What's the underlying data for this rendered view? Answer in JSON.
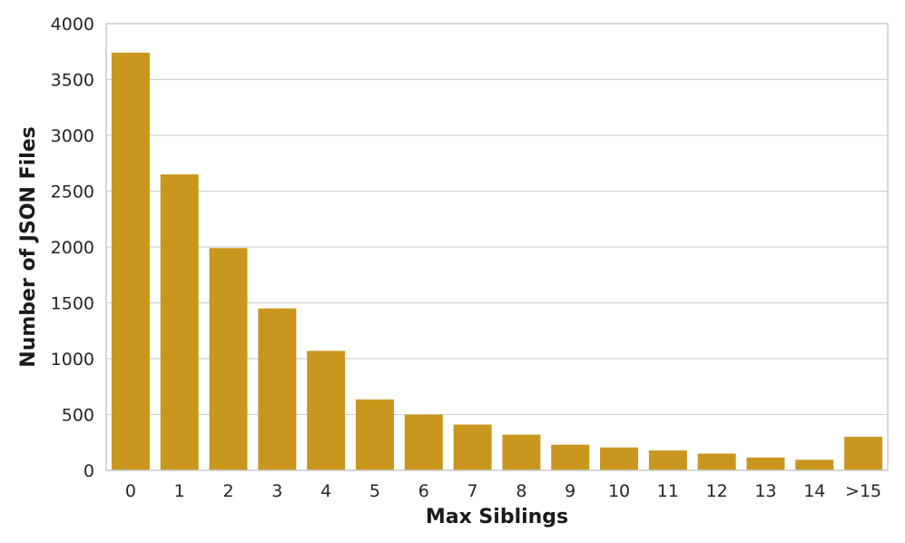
{
  "chart_data": {
    "type": "bar",
    "title": "",
    "xlabel": "Max Siblings",
    "ylabel": "Number of JSON Files",
    "categories": [
      "0",
      "1",
      "2",
      "3",
      "4",
      "5",
      "6",
      "7",
      "8",
      "9",
      "10",
      "11",
      "12",
      "13",
      "14",
      ">15"
    ],
    "values": [
      3740,
      2650,
      1990,
      1450,
      1070,
      635,
      500,
      410,
      320,
      230,
      205,
      178,
      150,
      115,
      95,
      300
    ],
    "ylim": [
      0,
      4000
    ],
    "yticks": [
      0,
      500,
      1000,
      1500,
      2000,
      2500,
      3000,
      3500,
      4000
    ],
    "grid": true,
    "legend": "none",
    "colors": {
      "bar": "#c9961e",
      "grid": "#d3d3d3",
      "frame": "#cccccc"
    }
  }
}
